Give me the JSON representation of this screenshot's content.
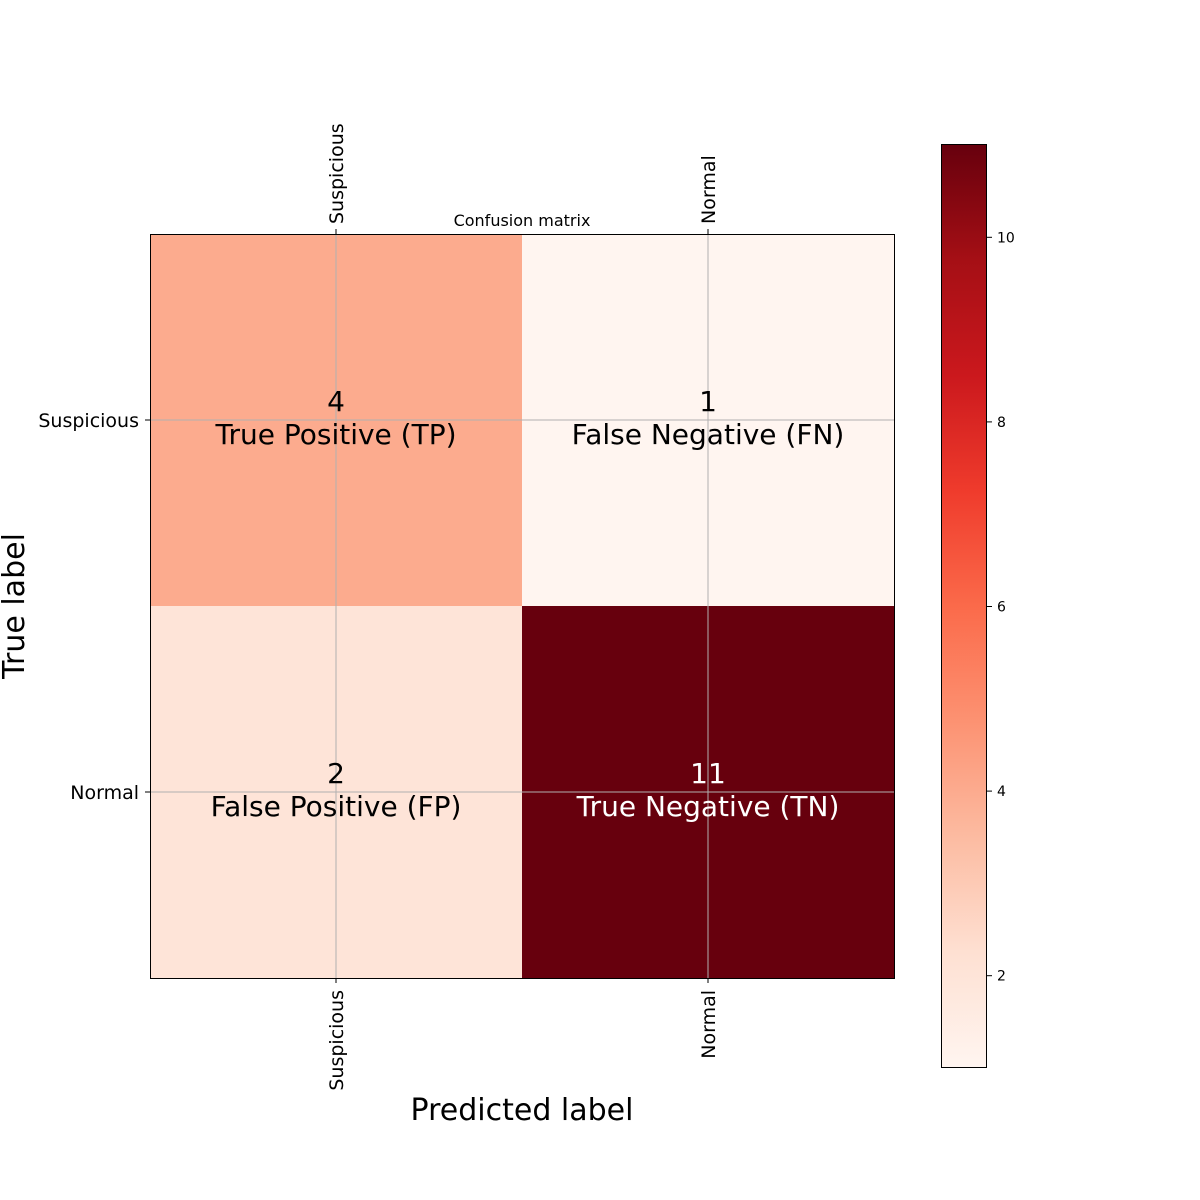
{
  "chart_data": {
    "type": "heatmap",
    "title": "Confusion matrix",
    "xlabel": "Predicted label",
    "ylabel": "True label",
    "x_categories": [
      "Suspicious",
      "Normal"
    ],
    "y_categories": [
      "Suspicious",
      "Normal"
    ],
    "values": [
      [
        4,
        1
      ],
      [
        2,
        11
      ]
    ],
    "cell_labels": [
      [
        "True Positive (TP)",
        "False Negative (FN)"
      ],
      [
        "False Positive (FP)",
        "True Negative (TN)"
      ]
    ],
    "colorscale": "Reds",
    "colorbar": {
      "min": 1,
      "max": 11,
      "ticks": [
        2,
        4,
        6,
        8,
        10
      ]
    },
    "grid": true
  }
}
